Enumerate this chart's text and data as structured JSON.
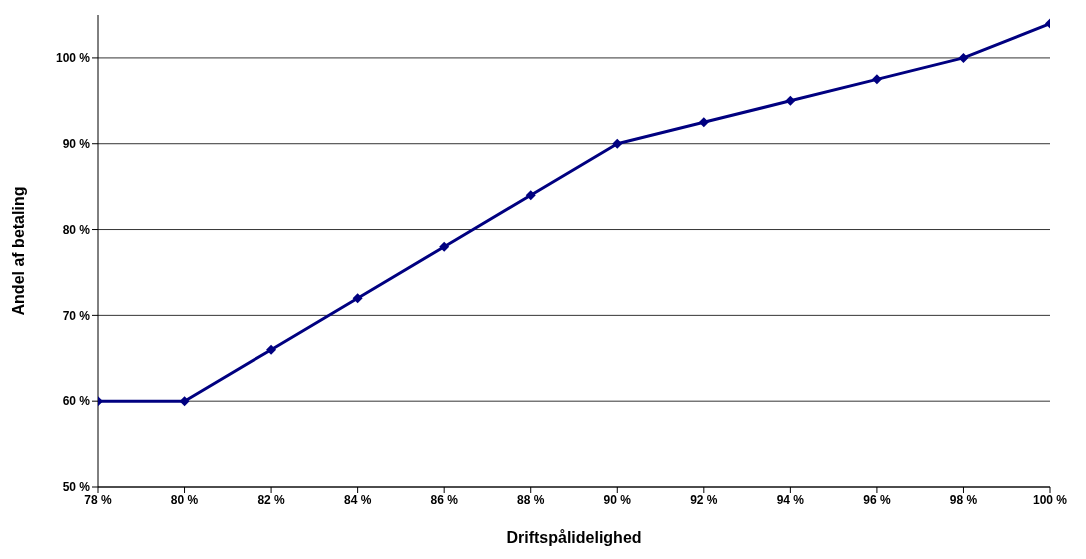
{
  "chart_data": {
    "type": "line",
    "xlabel": "Driftspålidelighed",
    "ylabel": "Andel af betaling",
    "x": [
      78,
      80,
      82,
      84,
      86,
      88,
      90,
      92,
      94,
      96,
      98,
      100
    ],
    "series": [
      {
        "color": "#000080",
        "values": [
          60,
          60,
          66,
          72,
          78,
          84,
          90,
          92.5,
          95,
          97.5,
          100,
          104
        ]
      }
    ],
    "xlim": [
      78,
      100
    ],
    "xticks": [
      {
        "value": 78,
        "label": "78 %"
      },
      {
        "value": 80,
        "label": "80 %"
      },
      {
        "value": 82,
        "label": "82 %"
      },
      {
        "value": 84,
        "label": "84 %"
      },
      {
        "value": 86,
        "label": "86 %"
      },
      {
        "value": 88,
        "label": "88 %"
      },
      {
        "value": 90,
        "label": "90 %"
      },
      {
        "value": 92,
        "label": "92 %"
      },
      {
        "value": 94,
        "label": "94 %"
      },
      {
        "value": 96,
        "label": "96 %"
      },
      {
        "value": 98,
        "label": "98 %"
      },
      {
        "value": 100,
        "label": "100 %"
      }
    ],
    "ylim": [
      50,
      105
    ],
    "yticks": [
      {
        "value": 50,
        "label": "50 %"
      },
      {
        "value": 60,
        "label": "60 %"
      },
      {
        "value": 70,
        "label": "70 %"
      },
      {
        "value": 80,
        "label": "80 %"
      },
      {
        "value": 90,
        "label": "90 %"
      },
      {
        "value": 100,
        "label": "100 %"
      }
    ],
    "grid": "y",
    "legend": false,
    "marker": "diamond",
    "line_style": "solid"
  }
}
